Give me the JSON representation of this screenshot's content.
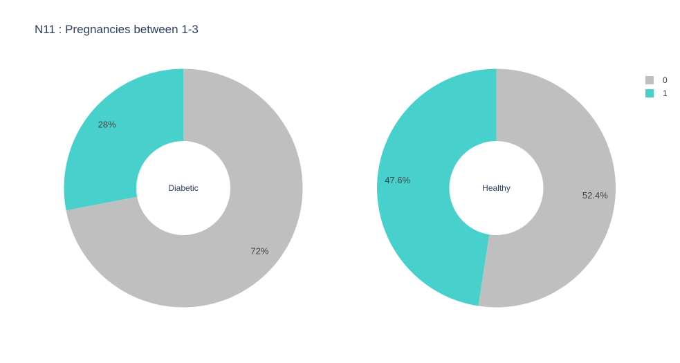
{
  "title": "N11 : Pregnancies between 1-3",
  "colors": {
    "0": "#bfbfbf",
    "1": "#48d1cc"
  },
  "chart_data": [
    {
      "type": "pie",
      "hole_label": "Diabetic",
      "labels": [
        "0",
        "1"
      ],
      "values": [
        72,
        28
      ],
      "text": [
        "72%",
        "28%"
      ]
    },
    {
      "type": "pie",
      "hole_label": "Healthy",
      "labels": [
        "0",
        "1"
      ],
      "values": [
        52.4,
        47.6
      ],
      "text": [
        "52.4%",
        "47.6%"
      ]
    }
  ],
  "legend": {
    "items": [
      {
        "label": "0",
        "color": "#bfbfbf"
      },
      {
        "label": "1",
        "color": "#48d1cc"
      }
    ]
  }
}
